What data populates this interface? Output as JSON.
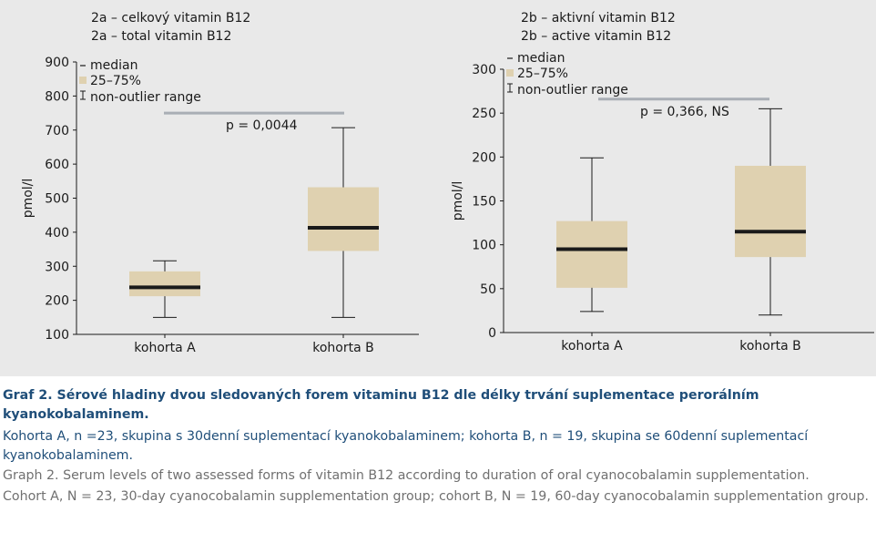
{
  "colors": {
    "panel_background": "#e9e9e9",
    "box_fill": "#dfd1b0",
    "median_line": "#1a1a1a",
    "p_bar": "#a9aeb5",
    "caption_title": "#1f4e79",
    "caption_english": "#707070"
  },
  "chart_data": [
    {
      "type": "box",
      "title": "2a – celkový vitamin B12",
      "subtitle": "2a – total vitamin B12",
      "ylabel": "pmol/l",
      "ylim": [
        100,
        900
      ],
      "yticks": [
        100,
        200,
        300,
        400,
        500,
        600,
        700,
        800,
        900
      ],
      "categories": [
        "kohorta A",
        "kohorta B"
      ],
      "boxes": [
        {
          "category": "kohorta A",
          "min": 150,
          "q1": 212,
          "median": 238,
          "q3": 285,
          "max": 316
        },
        {
          "category": "kohorta B",
          "min": 150,
          "q1": 345,
          "median": 413,
          "q3": 532,
          "max": 707
        }
      ],
      "legend": {
        "median": "median",
        "iqr": "25–75%",
        "range": "non-outlier range"
      },
      "p_value": {
        "text": "p = 0,0044",
        "level": 750
      }
    },
    {
      "type": "box",
      "title": "2b – aktivní vitamin B12",
      "subtitle": "2b – active vitamin B12",
      "ylabel": "pmol/l",
      "ylim": [
        0,
        300
      ],
      "yticks": [
        0,
        50,
        100,
        150,
        200,
        250,
        300
      ],
      "categories": [
        "kohorta A",
        "kohorta B"
      ],
      "boxes": [
        {
          "category": "kohorta A",
          "min": 24,
          "q1": 51,
          "median": 95,
          "q3": 127,
          "max": 199
        },
        {
          "category": "kohorta B",
          "min": 20,
          "q1": 86,
          "median": 115,
          "q3": 190,
          "max": 255
        }
      ],
      "legend": {
        "median": "median",
        "iqr": "25–75%",
        "range": "non-outlier range"
      },
      "p_value": {
        "text": "p = 0,366, NS",
        "level": 266
      }
    }
  ],
  "caption": {
    "title": "Graf 2. Sérové hladiny dvou sledovaných forem vitaminu B12 dle délky trvání suplementace perorálním kyanokobalaminem.",
    "czech": "Kohorta A, n =23, skupina s 30denní suplementací kyanokobalaminem; kohorta B, n = 19, skupina se 60denní suplementací kyanokobalaminem.",
    "english_title": "Graph 2. Serum levels of two assessed forms of vitamin B12 according to duration of oral cyanocobalamin supplementation.",
    "english": "Cohort A, N = 23, 30-day cyanocobalamin supplementation group; cohort B, N = 19, 60-day cyanocobalamin supplementation group."
  }
}
